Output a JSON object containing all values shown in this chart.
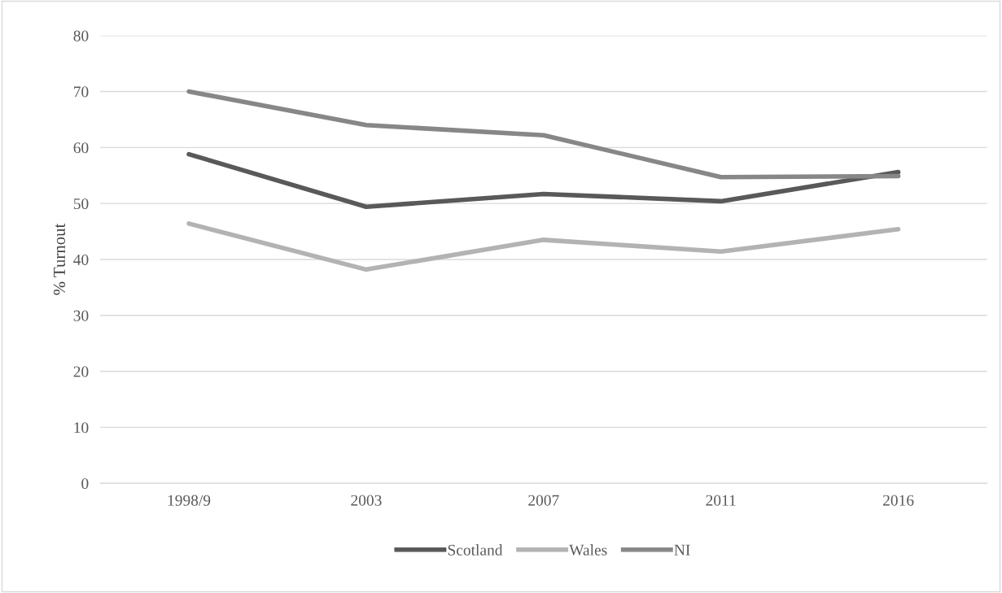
{
  "chart_data": {
    "type": "line",
    "ylabel": "% Turnout",
    "categories": [
      "1998/9",
      "2003",
      "2007",
      "2011",
      "2016"
    ],
    "series": [
      {
        "name": "Scotland",
        "color": "#595959",
        "values": [
          58.8,
          49.4,
          51.7,
          50.4,
          55.6
        ]
      },
      {
        "name": "Wales",
        "color": "#b3b3b3",
        "values": [
          46.4,
          38.2,
          43.5,
          41.4,
          45.4
        ]
      },
      {
        "name": "NI",
        "color": "#878787",
        "values": [
          70.0,
          64.0,
          62.2,
          54.7,
          54.9
        ]
      }
    ],
    "ylim": [
      0,
      80
    ],
    "yticks": [
      0,
      10,
      20,
      30,
      40,
      50,
      60,
      70,
      80
    ],
    "grid": "y",
    "legend": "bottom",
    "marker": "none",
    "line_style": "solid"
  }
}
